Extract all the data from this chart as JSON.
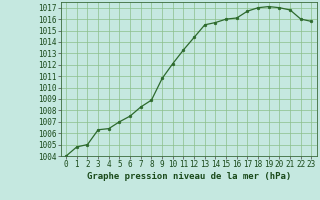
{
  "x": [
    0,
    1,
    2,
    3,
    4,
    5,
    6,
    7,
    8,
    9,
    10,
    11,
    12,
    13,
    14,
    15,
    16,
    17,
    18,
    19,
    20,
    21,
    22,
    23
  ],
  "y": [
    1004.0,
    1004.8,
    1005.0,
    1006.3,
    1006.4,
    1007.0,
    1007.5,
    1008.3,
    1008.9,
    1010.8,
    1012.1,
    1013.3,
    1014.4,
    1015.5,
    1015.7,
    1016.0,
    1016.1,
    1016.7,
    1017.0,
    1017.1,
    1017.0,
    1016.8,
    1016.0,
    1015.8
  ],
  "line_color": "#2d6a2d",
  "marker_color": "#2d6a2d",
  "bg_color": "#c5e8e0",
  "grid_color": "#8bbf8b",
  "xlabel": "Graphe pression niveau de la mer (hPa)",
  "ylim": [
    1004,
    1017.5
  ],
  "xlim": [
    -0.5,
    23.5
  ],
  "yticks": [
    1004,
    1005,
    1006,
    1007,
    1008,
    1009,
    1010,
    1011,
    1012,
    1013,
    1014,
    1015,
    1016,
    1017
  ],
  "xticks": [
    0,
    1,
    2,
    3,
    4,
    5,
    6,
    7,
    8,
    9,
    10,
    11,
    12,
    13,
    14,
    15,
    16,
    17,
    18,
    19,
    20,
    21,
    22,
    23
  ],
  "tick_fontsize": 5.5,
  "xlabel_fontsize": 6.5,
  "xlabel_fontweight": "bold"
}
